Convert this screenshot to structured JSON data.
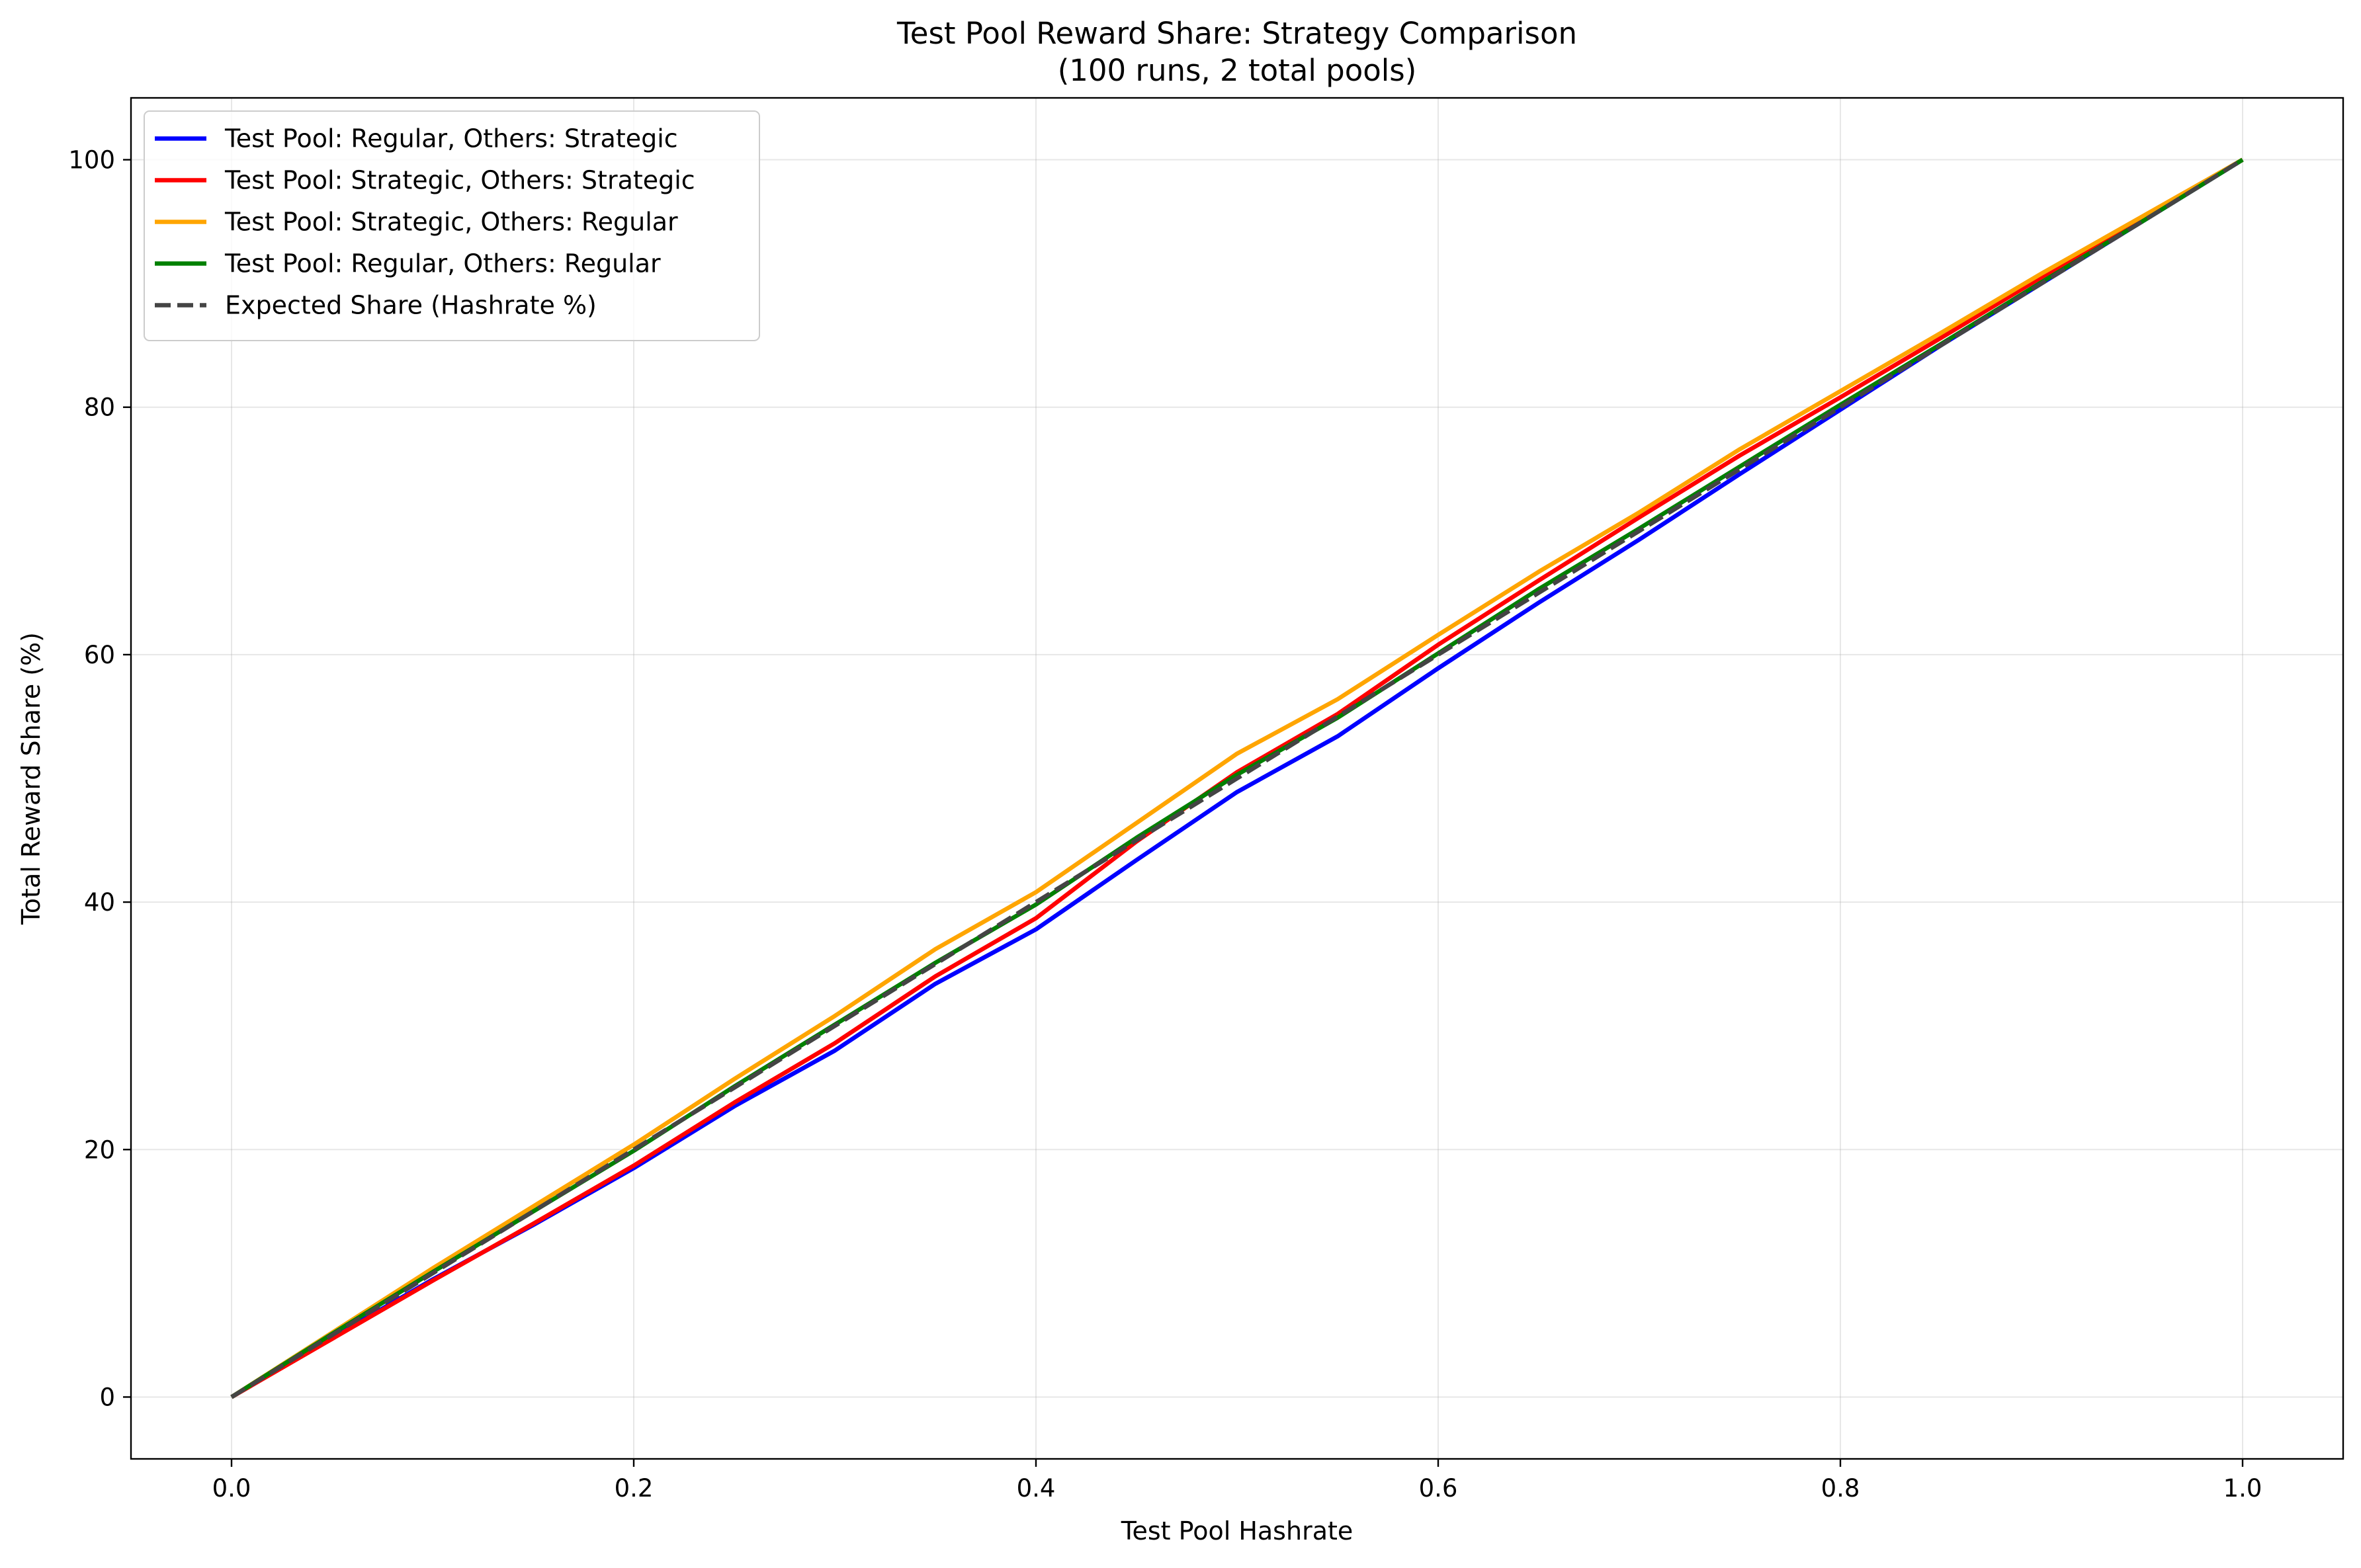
{
  "chart_data": {
    "type": "line",
    "title": "Test Pool Reward Share: Strategy Comparison",
    "subtitle": "(100 runs, 2 total pools)",
    "xlabel": "Test Pool Hashrate",
    "ylabel": "Total Reward Share (%)",
    "xlim": [
      -0.05,
      1.05
    ],
    "ylim": [
      -5,
      105
    ],
    "xticks": [
      0.0,
      0.2,
      0.4,
      0.6,
      0.8,
      1.0
    ],
    "xtick_labels": [
      "0.0",
      "0.2",
      "0.4",
      "0.6",
      "0.8",
      "1.0"
    ],
    "yticks": [
      0,
      20,
      40,
      60,
      80,
      100
    ],
    "ytick_labels": [
      "0",
      "20",
      "40",
      "60",
      "80",
      "100"
    ],
    "grid": true,
    "legend_position": "top-left",
    "x": [
      0.0,
      0.05,
      0.1,
      0.15,
      0.2,
      0.25,
      0.3,
      0.35,
      0.4,
      0.45,
      0.5,
      0.55,
      0.6,
      0.65,
      0.7,
      0.75,
      0.8,
      0.85,
      0.9,
      0.95,
      1.0
    ],
    "series": [
      {
        "name": "Test Pool: Regular, Others: Strategic",
        "color": "#0000ff",
        "dash": "solid",
        "values": [
          0,
          4.8,
          9.5,
          13.9,
          18.5,
          23.5,
          28.0,
          33.4,
          37.8,
          43.4,
          48.9,
          53.4,
          58.9,
          64.2,
          69.3,
          74.6,
          79.8,
          85.0,
          90.0,
          95.0,
          100
        ]
      },
      {
        "name": "Test Pool: Strategic, Others: Strategic",
        "color": "#ff0000",
        "dash": "solid",
        "values": [
          0,
          4.7,
          9.4,
          14.0,
          18.7,
          23.8,
          28.6,
          34.0,
          38.7,
          44.9,
          50.5,
          55.2,
          60.8,
          66.0,
          71.1,
          76.1,
          80.8,
          85.6,
          90.5,
          95.3,
          100
        ]
      },
      {
        "name": "Test Pool: Strategic, Others: Regular",
        "color": "#ffa500",
        "dash": "solid",
        "values": [
          0,
          5.2,
          10.4,
          15.4,
          20.4,
          25.7,
          30.8,
          36.2,
          40.8,
          46.4,
          52.0,
          56.4,
          61.6,
          66.7,
          71.5,
          76.6,
          81.3,
          86.0,
          90.8,
          95.4,
          100
        ]
      },
      {
        "name": "Test Pool: Regular, Others: Regular",
        "color": "#008000",
        "dash": "solid",
        "values": [
          0,
          5.1,
          10.1,
          15.0,
          19.9,
          25.1,
          30.1,
          35.1,
          39.8,
          45.2,
          50.3,
          54.9,
          60.1,
          65.3,
          70.2,
          75.2,
          80.2,
          85.1,
          90.1,
          95.0,
          100
        ]
      },
      {
        "name": "Expected Share (Hashrate %)",
        "color": "#444444",
        "dash": "dashed",
        "values": [
          0,
          5,
          10,
          15,
          20,
          25,
          30,
          35,
          40,
          45,
          50,
          55,
          60,
          65,
          70,
          75,
          80,
          85,
          90,
          95,
          100
        ]
      }
    ]
  }
}
